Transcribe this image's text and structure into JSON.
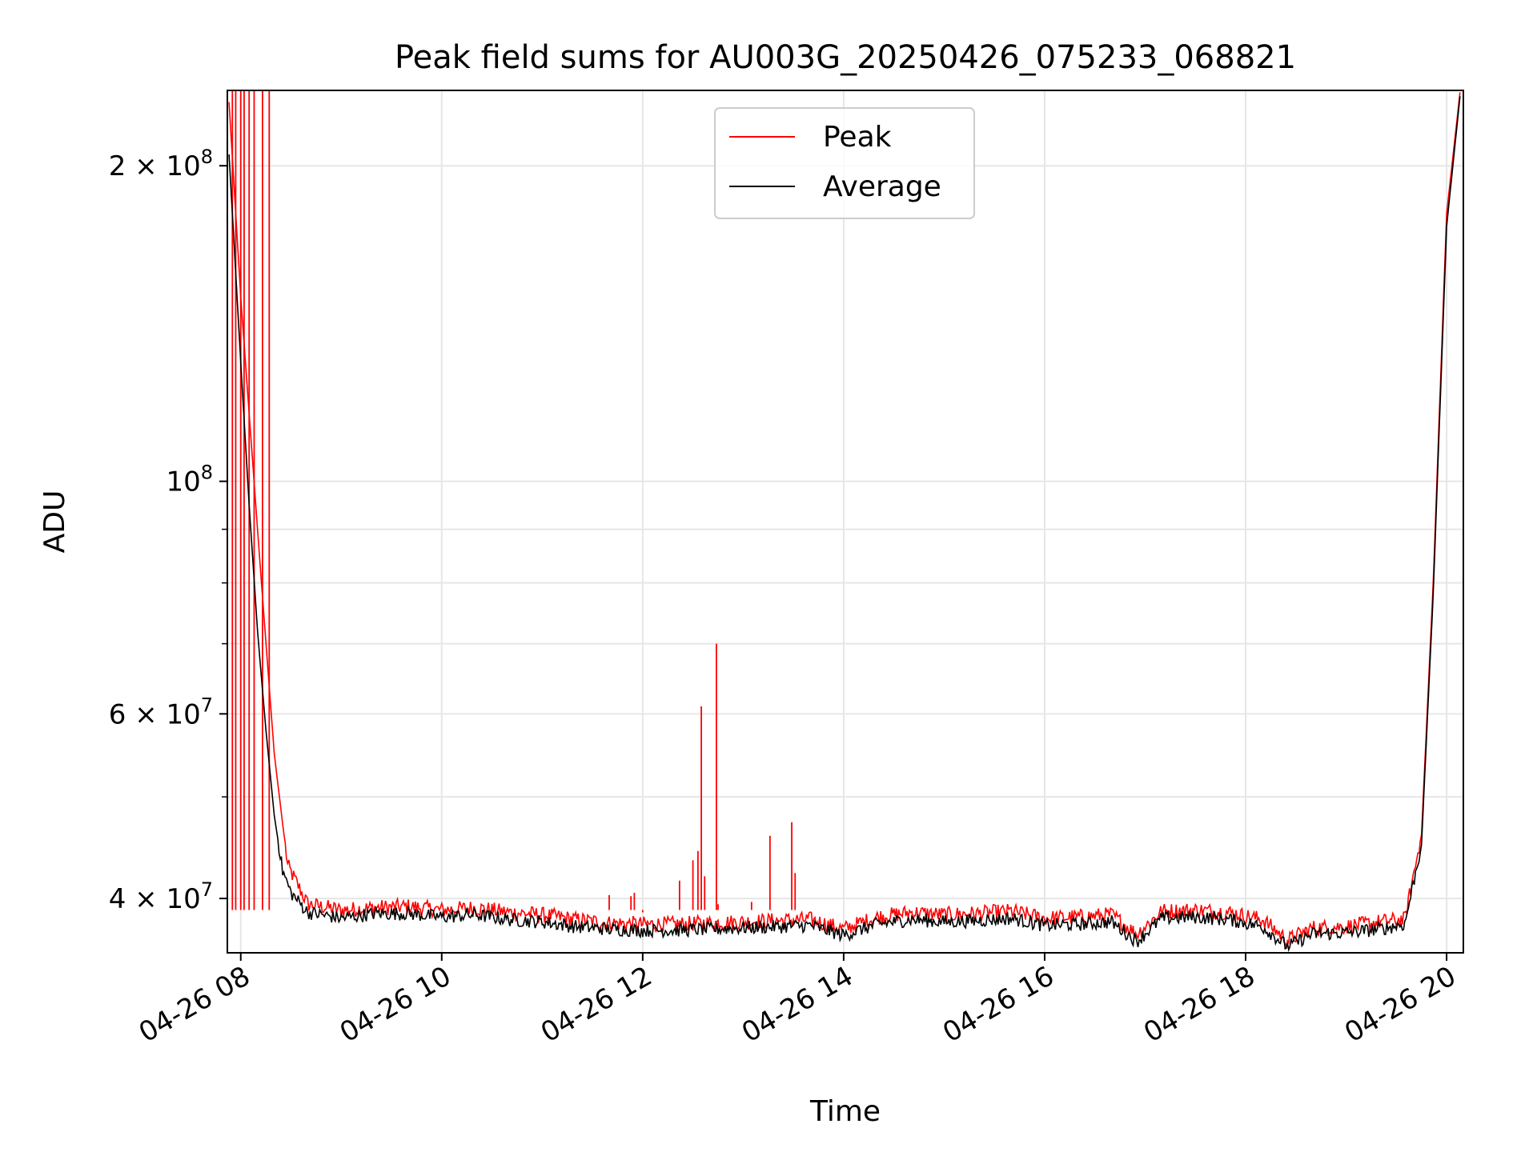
{
  "chart_data": {
    "type": "line",
    "title": "Peak field sums for AU003G_20250426_075233_068821",
    "xlabel": "Time",
    "ylabel": "ADU",
    "y_scale": "log",
    "xlim": [
      "04-26 07:52",
      "04-26 20:10"
    ],
    "ylim": [
      35500000,
      236000000
    ],
    "grid": true,
    "legend_position": "top-center",
    "x_ticks": [
      "04-26 08",
      "04-26 10",
      "04-26 12",
      "04-26 14",
      "04-26 16",
      "04-26 18",
      "04-26 20"
    ],
    "y_ticks": [
      {
        "value": 40000000,
        "base": "4 × 10",
        "exp": "7"
      },
      {
        "value": 60000000,
        "base": "6 × 10",
        "exp": "7"
      },
      {
        "value": 100000000,
        "base": "10",
        "exp": "8"
      },
      {
        "value": 200000000,
        "base": "2 × 10",
        "exp": "8"
      }
    ],
    "series": [
      {
        "name": "Peak",
        "color": "#ff0000",
        "points": [
          [
            "04-26 07:53",
            230000000
          ],
          [
            "04-26 08:00",
            150000000
          ],
          [
            "04-26 08:10",
            90000000
          ],
          [
            "04-26 08:20",
            55000000
          ],
          [
            "04-26 08:28",
            43000000
          ],
          [
            "04-26 08:40",
            39500000
          ],
          [
            "04-26 09:00",
            39000000
          ],
          [
            "04-26 09:20",
            39200000
          ],
          [
            "04-26 09:40",
            39300000
          ],
          [
            "04-26 10:00",
            39000000
          ],
          [
            "04-26 10:20",
            39200000
          ],
          [
            "04-26 10:40",
            38800000
          ],
          [
            "04-26 11:00",
            38600000
          ],
          [
            "04-26 11:20",
            38200000
          ],
          [
            "04-26 11:40",
            37900000
          ],
          [
            "04-26 12:00",
            37800000
          ],
          [
            "04-26 12:20",
            37800000
          ],
          [
            "04-26 12:40",
            37900000
          ],
          [
            "04-26 13:00",
            38000000
          ],
          [
            "04-26 13:20",
            38100000
          ],
          [
            "04-26 13:40",
            38200000
          ],
          [
            "04-26 14:00",
            37400000
          ],
          [
            "04-26 14:20",
            38400000
          ],
          [
            "04-26 14:40",
            38800000
          ],
          [
            "04-26 15:00",
            38600000
          ],
          [
            "04-26 15:20",
            38700000
          ],
          [
            "04-26 15:40",
            38900000
          ],
          [
            "04-26 16:00",
            38300000
          ],
          [
            "04-26 16:20",
            38400000
          ],
          [
            "04-26 16:40",
            38600000
          ],
          [
            "04-26 16:55",
            37000000
          ],
          [
            "04-26 17:10",
            38900000
          ],
          [
            "04-26 17:30",
            39000000
          ],
          [
            "04-26 17:50",
            38800000
          ],
          [
            "04-26 18:10",
            38200000
          ],
          [
            "04-26 18:25",
            36500000
          ],
          [
            "04-26 18:40",
            37500000
          ],
          [
            "04-26 19:00",
            37600000
          ],
          [
            "04-26 19:20",
            38000000
          ],
          [
            "04-26 19:35",
            38200000
          ],
          [
            "04-26 19:45",
            46000000
          ],
          [
            "04-26 19:52",
            80000000
          ],
          [
            "04-26 20:00",
            180000000
          ],
          [
            "04-26 20:08",
            235000000
          ]
        ],
        "spikes": [
          [
            "04-26 07:55",
            236000000
          ],
          [
            "04-26 07:57",
            236000000
          ],
          [
            "04-26 08:00",
            236000000
          ],
          [
            "04-26 08:02",
            236000000
          ],
          [
            "04-26 08:05",
            236000000
          ],
          [
            "04-26 08:08",
            236000000
          ],
          [
            "04-26 08:13",
            236000000
          ],
          [
            "04-26 08:17",
            236000000
          ],
          [
            "04-26 11:40",
            40300000
          ],
          [
            "04-26 11:53",
            40200000
          ],
          [
            "04-26 11:55",
            40500000
          ],
          [
            "04-26 12:00",
            38800000
          ],
          [
            "04-26 12:22",
            41600000
          ],
          [
            "04-26 12:30",
            43500000
          ],
          [
            "04-26 12:33",
            44400000
          ],
          [
            "04-26 12:35",
            61000000
          ],
          [
            "04-26 12:37",
            42000000
          ],
          [
            "04-26 12:45",
            39500000
          ],
          [
            "04-26 12:44",
            70000000
          ],
          [
            "04-26 13:05",
            39700000
          ],
          [
            "04-26 13:16",
            45900000
          ],
          [
            "04-26 13:29",
            47300000
          ],
          [
            "04-26 13:31",
            42300000
          ]
        ]
      },
      {
        "name": "Average",
        "color": "#000000",
        "points": [
          [
            "04-26 07:53",
            205000000
          ],
          [
            "04-26 08:00",
            130000000
          ],
          [
            "04-26 08:05",
            95000000
          ],
          [
            "04-26 08:10",
            72000000
          ],
          [
            "04-26 08:15",
            58000000
          ],
          [
            "04-26 08:20",
            48000000
          ],
          [
            "04-26 08:25",
            42500000
          ],
          [
            "04-26 08:30",
            40500000
          ],
          [
            "04-26 08:40",
            38800000
          ],
          [
            "04-26 09:00",
            38300000
          ],
          [
            "04-26 09:20",
            38700000
          ],
          [
            "04-26 09:40",
            38700000
          ],
          [
            "04-26 10:00",
            38400000
          ],
          [
            "04-26 10:20",
            38600000
          ],
          [
            "04-26 10:40",
            38200000
          ],
          [
            "04-26 11:00",
            38000000
          ],
          [
            "04-26 11:20",
            37600000
          ],
          [
            "04-26 11:40",
            37400000
          ],
          [
            "04-26 12:00",
            37300000
          ],
          [
            "04-26 12:20",
            37300000
          ],
          [
            "04-26 12:40",
            37400000
          ],
          [
            "04-26 13:00",
            37500000
          ],
          [
            "04-26 13:20",
            37600000
          ],
          [
            "04-26 13:40",
            37700000
          ],
          [
            "04-26 14:00",
            36900000
          ],
          [
            "04-26 14:20",
            37800000
          ],
          [
            "04-26 14:40",
            38200000
          ],
          [
            "04-26 15:00",
            38000000
          ],
          [
            "04-26 15:20",
            38100000
          ],
          [
            "04-26 15:40",
            38300000
          ],
          [
            "04-26 16:00",
            37700000
          ],
          [
            "04-26 16:20",
            37800000
          ],
          [
            "04-26 16:40",
            38000000
          ],
          [
            "04-26 16:55",
            36400000
          ],
          [
            "04-26 17:10",
            38300000
          ],
          [
            "04-26 17:30",
            38400000
          ],
          [
            "04-26 17:50",
            38200000
          ],
          [
            "04-26 18:10",
            37600000
          ],
          [
            "04-26 18:25",
            36000000
          ],
          [
            "04-26 18:40",
            37000000
          ],
          [
            "04-26 19:00",
            37100000
          ],
          [
            "04-26 19:20",
            37400000
          ],
          [
            "04-26 19:35",
            37800000
          ],
          [
            "04-26 19:45",
            45000000
          ],
          [
            "04-26 19:52",
            78000000
          ],
          [
            "04-26 20:00",
            175000000
          ],
          [
            "04-26 20:08",
            233000000
          ]
        ]
      }
    ]
  }
}
